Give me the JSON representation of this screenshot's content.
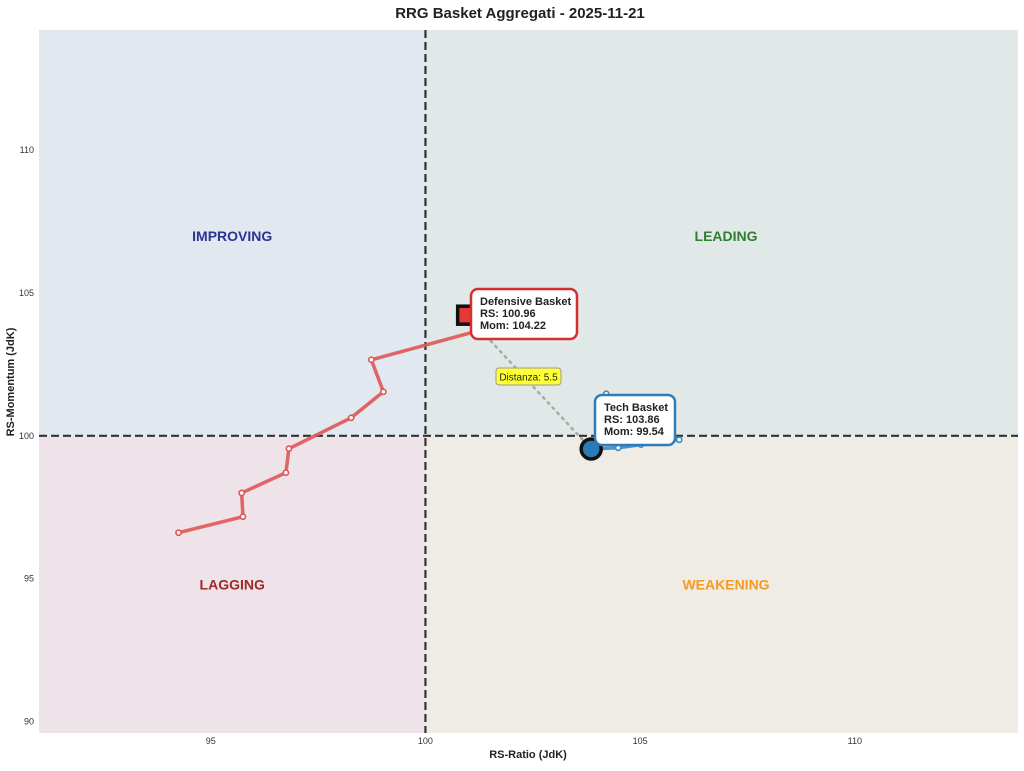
{
  "chart_data": {
    "type": "scatter",
    "title": "RRG Basket Aggregati - 2025-11-21",
    "xlabel": "RS-Ratio (JdK)",
    "ylabel": "RS-Momentum (JdK)",
    "xlim": [
      91,
      113.8
    ],
    "ylim": [
      89.6,
      114.2
    ],
    "xticks": [
      95,
      100,
      105,
      110
    ],
    "yticks": [
      90,
      95,
      100,
      105,
      110
    ],
    "center": [
      100,
      100
    ],
    "quadrants": [
      {
        "label": "IMPROVING",
        "x": 95.5,
        "y": 107,
        "color": "#283593",
        "bg": "#e1e8f0"
      },
      {
        "label": "LEADING",
        "x": 107,
        "y": 107,
        "color": "#2e7d32",
        "bg": "#e1e9e8"
      },
      {
        "label": "LAGGING",
        "x": 95.5,
        "y": 94.8,
        "color": "#a02828",
        "bg": "#ede3e8"
      },
      {
        "label": "WEAKENING",
        "x": 107,
        "y": 94.8,
        "color": "#f59a23",
        "bg": "#efebe5"
      }
    ],
    "series": [
      {
        "name": "Defensive Basket",
        "color": "#e05555",
        "border": "#d32f2f",
        "marker": "square",
        "x": [
          94.25,
          95.75,
          95.72,
          96.75,
          96.82,
          98.27,
          99.02,
          98.74,
          101.31,
          100.96
        ],
        "y": [
          96.61,
          97.17,
          98.0,
          98.71,
          99.55,
          100.63,
          101.54,
          102.66,
          103.71,
          104.22
        ],
        "label": {
          "name": "Defensive Basket",
          "rs": "RS: 100.96",
          "mom": "Mom: 104.22"
        }
      },
      {
        "name": "Tech Basket",
        "color": "#3a8cc8",
        "border": "#2e7cb8",
        "marker": "circle",
        "x": [
          104.21,
          105.91,
          105.02,
          104.49,
          103.86
        ],
        "y": [
          101.47,
          99.86,
          99.69,
          99.58,
          99.54
        ],
        "label": {
          "name": "Tech Basket",
          "rs": "RS: 103.86",
          "mom": "Mom: 99.54"
        }
      }
    ],
    "distance_label": "Distanza: 5.5"
  }
}
